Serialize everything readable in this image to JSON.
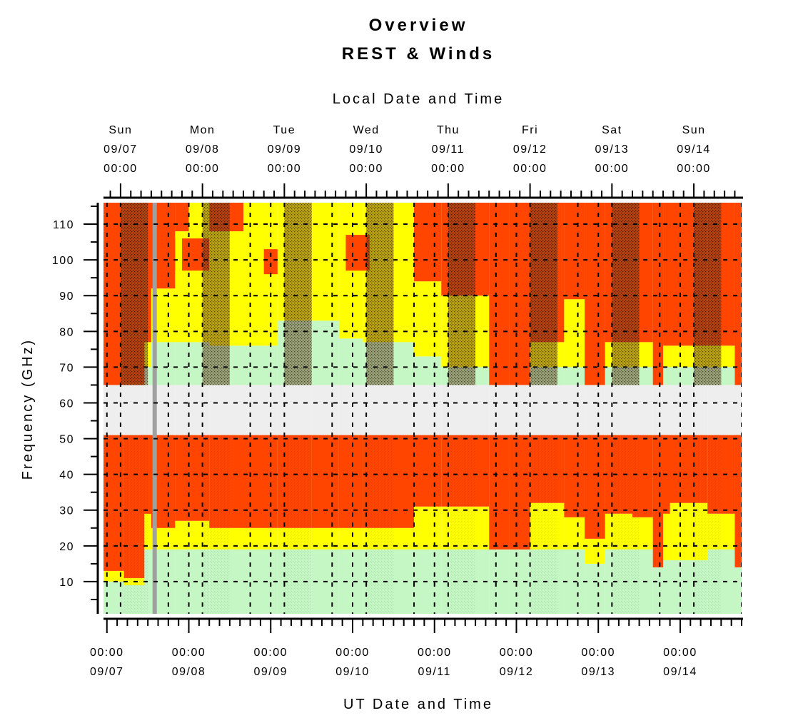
{
  "chart_data": {
    "type": "heatmap",
    "title": "Overview",
    "subtitle": "REST & Winds",
    "top_axis_label": "Local Date and Time",
    "xlabel": "UT Date and Time",
    "ylabel": "Frequency (GHz)",
    "xlim_hours": [
      -1,
      186
    ],
    "ylim": [
      1,
      116
    ],
    "grid": true,
    "y_ticks": [
      "10",
      "20",
      "30",
      "40",
      "50",
      "60",
      "70",
      "80",
      "90",
      "100",
      "110"
    ],
    "y_tick_values": [
      10,
      20,
      30,
      40,
      50,
      60,
      70,
      80,
      90,
      100,
      110
    ],
    "local_ticks": [
      {
        "day": "Sun",
        "date": "09/07",
        "time": "00:00",
        "hour": 4
      },
      {
        "day": "Mon",
        "date": "09/08",
        "time": "00:00",
        "hour": 28
      },
      {
        "day": "Tue",
        "date": "09/09",
        "time": "00:00",
        "hour": 52
      },
      {
        "day": "Wed",
        "date": "09/10",
        "time": "00:00",
        "hour": 76
      },
      {
        "day": "Thu",
        "date": "09/11",
        "time": "00:00",
        "hour": 100
      },
      {
        "day": "Fri",
        "date": "09/12",
        "time": "00:00",
        "hour": 124
      },
      {
        "day": "Sat",
        "date": "09/13",
        "time": "00:00",
        "hour": 148
      },
      {
        "day": "Sun",
        "date": "09/14",
        "time": "00:00",
        "hour": 172
      }
    ],
    "ut_ticks": [
      {
        "time": "00:00",
        "date": "09/07",
        "hour": 0
      },
      {
        "time": "00:00",
        "date": "09/08",
        "hour": 24
      },
      {
        "time": "00:00",
        "date": "09/09",
        "hour": 48
      },
      {
        "time": "00:00",
        "date": "09/10",
        "hour": 72
      },
      {
        "time": "00:00",
        "date": "09/11",
        "hour": 96
      },
      {
        "time": "00:00",
        "date": "09/12",
        "hour": 120
      },
      {
        "time": "00:00",
        "date": "09/13",
        "hour": 144
      },
      {
        "time": "00:00",
        "date": "09/14",
        "hour": 168
      }
    ],
    "colors": {
      "good": "#c4f7c4",
      "fair": "#ffff00",
      "poor": "#ff4500",
      "unavailable": "#eeeeee",
      "night_shade": "#6a3a1a",
      "now_marker": "#a0a0a0"
    },
    "now_hour": 14,
    "unavailable_band": [
      51,
      65
    ],
    "night_intervals": [
      [
        4,
        12
      ],
      [
        28,
        36
      ],
      [
        52,
        60
      ],
      [
        76,
        84
      ],
      [
        100,
        108
      ],
      [
        124,
        132
      ],
      [
        148,
        156
      ],
      [
        172,
        180
      ]
    ],
    "columns": [
      {
        "hour_from": -1,
        "hour_to": 5,
        "good_below": 10,
        "fair_below": 13,
        "high_good_below": 65,
        "high_fair_below": 65
      },
      {
        "hour_from": 5,
        "hour_to": 11,
        "good_below": 9,
        "fair_below": 11,
        "high_good_below": 65,
        "high_fair_below": 65
      },
      {
        "hour_from": 11,
        "hour_to": 13,
        "good_below": 19,
        "fair_below": 29,
        "high_good_below": 70,
        "high_fair_below": 77
      },
      {
        "hour_from": 13,
        "hour_to": 20,
        "good_below": 19,
        "fair_below": 25,
        "high_good_below": 77,
        "high_fair_below": 92
      },
      {
        "hour_from": 20,
        "hour_to": 24,
        "good_below": 19,
        "fair_below": 27,
        "high_good_below": 77,
        "high_fair_below": 108
      },
      {
        "hour_from": 24,
        "hour_to": 30,
        "good_below": 19,
        "fair_below": 27,
        "high_good_below": 77,
        "high_fair_below": 116
      },
      {
        "hour_from": 30,
        "hour_to": 40,
        "good_below": 19,
        "fair_below": 25,
        "high_good_below": 76,
        "high_fair_below": 108
      },
      {
        "hour_from": 40,
        "hour_to": 50,
        "good_below": 19,
        "fair_below": 25,
        "high_good_below": 76,
        "high_fair_below": 116
      },
      {
        "hour_from": 50,
        "hour_to": 60,
        "good_below": 19,
        "fair_below": 25,
        "high_good_below": 83,
        "high_fair_below": 116
      },
      {
        "hour_from": 60,
        "hour_to": 68,
        "good_below": 19,
        "fair_below": 25,
        "high_good_below": 83,
        "high_fair_below": 116
      },
      {
        "hour_from": 68,
        "hour_to": 75,
        "good_below": 19,
        "fair_below": 25,
        "high_good_below": 78,
        "high_fair_below": 116
      },
      {
        "hour_from": 75,
        "hour_to": 90,
        "good_below": 19,
        "fair_below": 25,
        "high_good_below": 77,
        "high_fair_below": 116
      },
      {
        "hour_from": 90,
        "hour_to": 98,
        "good_below": 19,
        "fair_below": 31,
        "high_good_below": 73,
        "high_fair_below": 94
      },
      {
        "hour_from": 98,
        "hour_to": 104,
        "good_below": 19,
        "fair_below": 31,
        "high_good_below": 70,
        "high_fair_below": 90
      },
      {
        "hour_from": 104,
        "hour_to": 112,
        "good_below": 19,
        "fair_below": 31,
        "high_good_below": 70,
        "high_fair_below": 90
      },
      {
        "hour_from": 112,
        "hour_to": 118,
        "good_below": 19,
        "fair_below": 19,
        "high_good_below": 65,
        "high_fair_below": 65
      },
      {
        "hour_from": 118,
        "hour_to": 124,
        "good_below": 19,
        "fair_below": 19,
        "high_good_below": 65,
        "high_fair_below": 65
      },
      {
        "hour_from": 124,
        "hour_to": 134,
        "good_below": 19,
        "fair_below": 32,
        "high_good_below": 70,
        "high_fair_below": 77
      },
      {
        "hour_from": 134,
        "hour_to": 140,
        "good_below": 19,
        "fair_below": 28,
        "high_good_below": 70,
        "high_fair_below": 89
      },
      {
        "hour_from": 140,
        "hour_to": 146,
        "good_below": 15,
        "fair_below": 22,
        "high_good_below": 65,
        "high_fair_below": 65
      },
      {
        "hour_from": 146,
        "hour_to": 154,
        "good_below": 19,
        "fair_below": 29,
        "high_good_below": 70,
        "high_fair_below": 77
      },
      {
        "hour_from": 154,
        "hour_to": 160,
        "good_below": 19,
        "fair_below": 28,
        "high_good_below": 70,
        "high_fair_below": 77
      },
      {
        "hour_from": 160,
        "hour_to": 163,
        "good_below": 14,
        "fair_below": 14,
        "high_good_below": 65,
        "high_fair_below": 65
      },
      {
        "hour_from": 163,
        "hour_to": 176,
        "good_below": 16,
        "fair_below": 32,
        "high_good_below": 70,
        "high_fair_below": 76
      },
      {
        "hour_from": 176,
        "hour_to": 184,
        "good_below": 19,
        "fair_below": 29,
        "high_good_below": 70,
        "high_fair_below": 76
      },
      {
        "hour_from": 184,
        "hour_to": 186,
        "good_below": 14,
        "fair_below": 14,
        "high_good_below": 65,
        "high_fair_below": 65
      }
    ],
    "poor_patches": [
      {
        "hour_from": 13,
        "hour_to": 20,
        "freq_from": 97,
        "freq_to": 106
      },
      {
        "hour_from": 22,
        "hour_to": 30,
        "freq_from": 97,
        "freq_to": 106
      },
      {
        "hour_from": 46,
        "hour_to": 50,
        "freq_from": 96,
        "freq_to": 103
      },
      {
        "hour_from": 70,
        "hour_to": 77,
        "freq_from": 97,
        "freq_to": 107
      },
      {
        "hour_from": 10,
        "hour_to": 13,
        "freq_from": 29,
        "freq_to": 51
      },
      {
        "hour_from": 118,
        "hour_to": 121,
        "freq_from": 35,
        "freq_to": 51
      },
      {
        "hour_from": 141,
        "hour_to": 144,
        "freq_from": 29,
        "freq_to": 51
      },
      {
        "hour_from": 162,
        "hour_to": 165,
        "freq_from": 29,
        "freq_to": 51
      },
      {
        "hour_from": 184,
        "hour_to": 186,
        "freq_from": 29,
        "freq_to": 51
      }
    ]
  }
}
